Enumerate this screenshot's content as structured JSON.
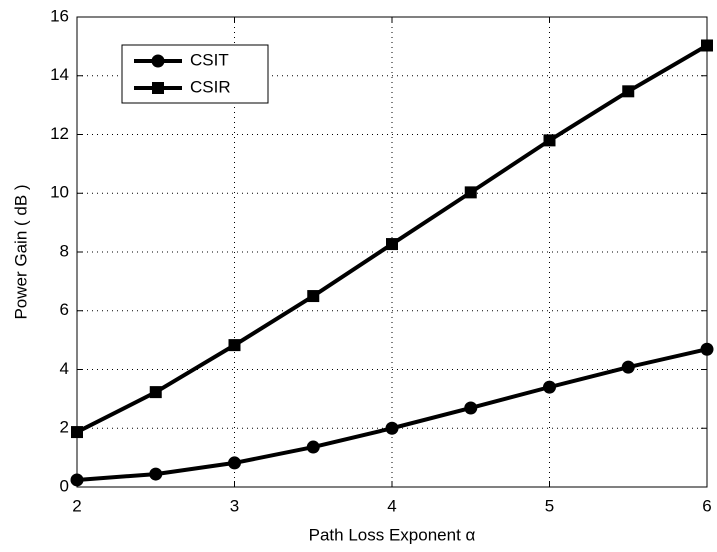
{
  "chart_data": {
    "type": "line",
    "x_label": "Path Loss Exponent α",
    "y_label": "Power Gain ( dB )",
    "x": [
      2,
      2.5,
      3,
      3.5,
      4,
      4.5,
      5,
      5.5,
      6
    ],
    "series": [
      {
        "name": "CSIT",
        "color": "#000000",
        "marker": "circle",
        "values": [
          0.24,
          0.44,
          0.82,
          1.36,
          2.0,
          2.69,
          3.4,
          4.08,
          4.69
        ]
      },
      {
        "name": "CSIR",
        "color": "#000000",
        "marker": "square",
        "values": [
          1.87,
          3.23,
          4.83,
          6.5,
          8.27,
          10.03,
          11.8,
          13.47,
          15.03
        ]
      }
    ],
    "xlim": [
      2,
      6
    ],
    "xticks": [
      2,
      3,
      4,
      5,
      6
    ],
    "ylim": [
      0,
      16
    ],
    "yticks": [
      0,
      2,
      4,
      6,
      8,
      10,
      12,
      14,
      16
    ],
    "grid": true,
    "legend": "upper left"
  }
}
